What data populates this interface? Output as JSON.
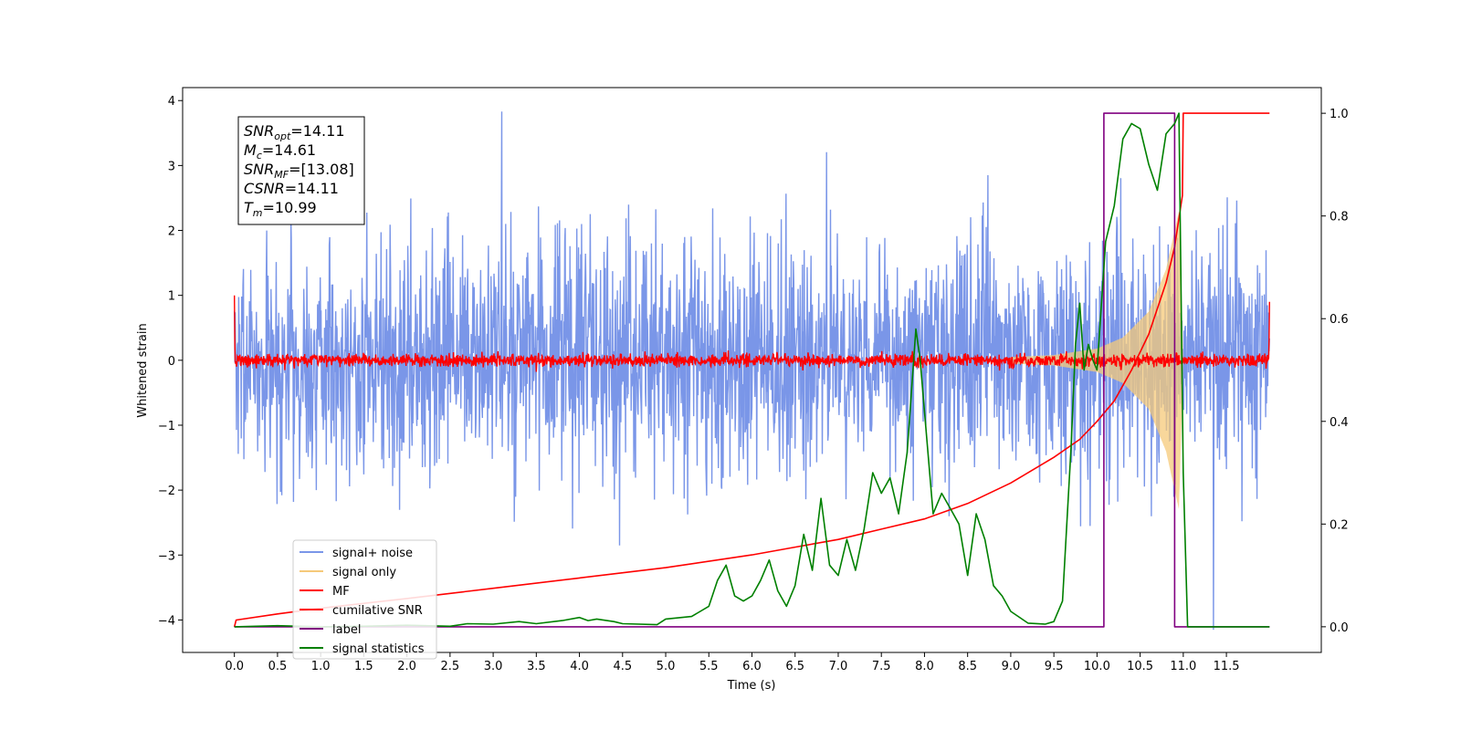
{
  "chart_data": {
    "type": "line",
    "xlabel": "Time (s)",
    "ylabel": "Whitened strain",
    "xlim": [
      -0.6,
      12.6
    ],
    "ylim": [
      -4.5,
      4.2
    ],
    "y2lim": [
      -0.05,
      1.05
    ],
    "xticks": [
      0.0,
      0.5,
      1.0,
      1.5,
      2.0,
      2.5,
      3.0,
      3.5,
      4.0,
      4.5,
      5.0,
      5.5,
      6.0,
      6.5,
      7.0,
      7.5,
      8.0,
      8.5,
      9.0,
      9.5,
      10.0,
      10.5,
      11.0,
      11.5
    ],
    "xtick_labels": [
      "0.0",
      "0.5",
      "1.0",
      "1.5",
      "2.0",
      "2.5",
      "3.0",
      "3.5",
      "4.0",
      "4.5",
      "5.0",
      "5.5",
      "6.0",
      "6.5",
      "7.0",
      "7.5",
      "8.0",
      "8.5",
      "9.0",
      "9.5",
      "10.0",
      "10.5",
      "11.0",
      "11.5"
    ],
    "yticks": [
      -4,
      -3,
      -2,
      -1,
      0,
      1,
      2,
      3,
      4
    ],
    "ytick_labels": [
      "−4",
      "−3",
      "−2",
      "−1",
      "0",
      "1",
      "2",
      "3",
      "4"
    ],
    "y2ticks": [
      0.0,
      0.2,
      0.4,
      0.6,
      0.8,
      1.0
    ],
    "y2tick_labels": [
      "0.0",
      "0.2",
      "0.4",
      "0.6",
      "0.8",
      "1.0"
    ],
    "annotation": [
      {
        "sym": "SNR",
        "sub": "opt",
        "val": "=14.11"
      },
      {
        "sym": "M",
        "sub": "c",
        "val": "=14.61"
      },
      {
        "sym": "SNR",
        "sub": "MF",
        "val": "=[13.08]"
      },
      {
        "sym": "CSNR",
        "sub": "",
        "val": "=14.11"
      },
      {
        "sym": "T",
        "sub": "m",
        "val": "=10.99"
      }
    ],
    "legend_position": "lower-left",
    "series": [
      {
        "name": "signal+ noise",
        "axis": "left",
        "color": "#7a96e8",
        "kind": "noise",
        "x_range": [
          0.0,
          12.0
        ],
        "envelope": 1.9,
        "peak": 3.83,
        "peak_x": 3.1,
        "trough": -4.15,
        "trough_x": 11.35
      },
      {
        "name": "signal only",
        "axis": "left",
        "color": "#f5c97a",
        "kind": "chirp",
        "x_range": [
          9.0,
          11.0
        ],
        "amplitude_points": [
          [
            9.0,
            0.05
          ],
          [
            9.5,
            0.08
          ],
          [
            10.0,
            0.18
          ],
          [
            10.3,
            0.35
          ],
          [
            10.6,
            0.75
          ],
          [
            10.8,
            1.4
          ],
          [
            10.95,
            2.3
          ],
          [
            11.0,
            0.0
          ]
        ]
      },
      {
        "name": "MF",
        "axis": "left",
        "color": "#ff0000",
        "kind": "mf",
        "x_range": [
          0.0,
          12.0
        ],
        "start_value": 1.0,
        "end_value": 0.9,
        "band": 0.1
      },
      {
        "name": "cumilative SNR",
        "axis": "right",
        "color": "#ff0000",
        "kind": "line",
        "x": [
          0.0,
          0.02,
          0.5,
          1.0,
          2.0,
          3.0,
          4.0,
          5.0,
          6.0,
          6.5,
          7.0,
          7.5,
          8.0,
          8.5,
          9.0,
          9.5,
          9.8,
          10.0,
          10.2,
          10.4,
          10.6,
          10.8,
          10.9,
          10.99,
          11.0,
          12.0
        ],
        "y": [
          0.0,
          0.013,
          0.025,
          0.036,
          0.055,
          0.075,
          0.095,
          0.115,
          0.14,
          0.155,
          0.17,
          0.19,
          0.21,
          0.24,
          0.28,
          0.33,
          0.365,
          0.4,
          0.44,
          0.5,
          0.57,
          0.67,
          0.74,
          0.84,
          1.0,
          1.0
        ]
      },
      {
        "name": "label",
        "axis": "right",
        "color": "#800080",
        "kind": "line",
        "x": [
          0.0,
          10.08,
          10.08,
          10.9,
          10.9,
          11.0,
          12.0
        ],
        "y": [
          0.0,
          0.0,
          1.0,
          1.0,
          0.0,
          0.0,
          0.0
        ]
      },
      {
        "name": "signal statistics",
        "axis": "right",
        "color": "#008000",
        "kind": "line",
        "x": [
          0.0,
          0.5,
          1.0,
          1.5,
          2.0,
          2.5,
          2.7,
          3.0,
          3.3,
          3.5,
          3.8,
          4.0,
          4.1,
          4.2,
          4.4,
          4.5,
          4.9,
          5.0,
          5.3,
          5.5,
          5.6,
          5.7,
          5.8,
          5.9,
          6.0,
          6.1,
          6.2,
          6.3,
          6.4,
          6.5,
          6.6,
          6.7,
          6.8,
          6.9,
          7.0,
          7.1,
          7.2,
          7.3,
          7.4,
          7.5,
          7.6,
          7.7,
          7.8,
          7.9,
          7.95,
          8.0,
          8.1,
          8.2,
          8.3,
          8.4,
          8.5,
          8.6,
          8.7,
          8.8,
          8.9,
          9.0,
          9.2,
          9.4,
          9.5,
          9.6,
          9.7,
          9.75,
          9.8,
          9.85,
          9.9,
          9.95,
          10.0,
          10.1,
          10.2,
          10.3,
          10.4,
          10.5,
          10.6,
          10.7,
          10.8,
          10.9,
          10.95,
          11.0,
          11.05,
          12.0
        ],
        "y": [
          0.0,
          0.002,
          0.0,
          0.001,
          0.003,
          0.001,
          0.006,
          0.005,
          0.01,
          0.006,
          0.012,
          0.018,
          0.012,
          0.015,
          0.01,
          0.006,
          0.004,
          0.015,
          0.02,
          0.04,
          0.09,
          0.12,
          0.06,
          0.05,
          0.06,
          0.09,
          0.13,
          0.07,
          0.04,
          0.08,
          0.18,
          0.11,
          0.25,
          0.12,
          0.1,
          0.17,
          0.11,
          0.19,
          0.3,
          0.26,
          0.29,
          0.22,
          0.34,
          0.58,
          0.52,
          0.42,
          0.22,
          0.26,
          0.23,
          0.2,
          0.1,
          0.22,
          0.17,
          0.08,
          0.06,
          0.03,
          0.007,
          0.005,
          0.01,
          0.05,
          0.35,
          0.55,
          0.63,
          0.5,
          0.55,
          0.52,
          0.5,
          0.75,
          0.82,
          0.95,
          0.98,
          0.97,
          0.9,
          0.85,
          0.96,
          0.98,
          1.0,
          0.3,
          0.0,
          0.0
        ]
      }
    ]
  }
}
